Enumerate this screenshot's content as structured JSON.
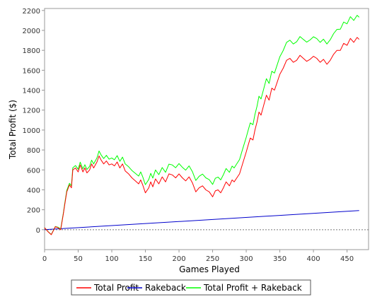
{
  "chart_data": {
    "type": "line",
    "title": "",
    "xlabel": "Games Played",
    "ylabel": "Total Profit ($)",
    "xlim": [
      0,
      482
    ],
    "ylim": [
      -200,
      2220
    ],
    "x_ticks": [
      0,
      50,
      100,
      150,
      200,
      250,
      300,
      350,
      400,
      450
    ],
    "y_ticks": [
      0,
      200,
      400,
      600,
      800,
      1000,
      1200,
      1400,
      1600,
      1800,
      2000,
      2200
    ],
    "zero_line": "dashed",
    "grid": false,
    "legend_position": "bottom",
    "series": [
      {
        "name": "Total Profit",
        "color": "#ff0000",
        "points": [
          [
            0,
            20
          ],
          [
            5,
            -20
          ],
          [
            10,
            -50
          ],
          [
            13,
            -10
          ],
          [
            16,
            30
          ],
          [
            20,
            20
          ],
          [
            24,
            0
          ],
          [
            28,
            160
          ],
          [
            30,
            250
          ],
          [
            33,
            380
          ],
          [
            37,
            450
          ],
          [
            40,
            420
          ],
          [
            42,
            600
          ],
          [
            46,
            620
          ],
          [
            50,
            580
          ],
          [
            53,
            650
          ],
          [
            57,
            580
          ],
          [
            60,
            620
          ],
          [
            63,
            570
          ],
          [
            67,
            600
          ],
          [
            70,
            660
          ],
          [
            73,
            620
          ],
          [
            78,
            680
          ],
          [
            81,
            740
          ],
          [
            84,
            700
          ],
          [
            88,
            660
          ],
          [
            92,
            690
          ],
          [
            96,
            650
          ],
          [
            100,
            660
          ],
          [
            104,
            640
          ],
          [
            108,
            680
          ],
          [
            112,
            620
          ],
          [
            116,
            660
          ],
          [
            120,
            590
          ],
          [
            125,
            560
          ],
          [
            130,
            520
          ],
          [
            135,
            490
          ],
          [
            140,
            460
          ],
          [
            143,
            500
          ],
          [
            146,
            450
          ],
          [
            150,
            370
          ],
          [
            155,
            420
          ],
          [
            158,
            480
          ],
          [
            161,
            430
          ],
          [
            165,
            510
          ],
          [
            170,
            460
          ],
          [
            175,
            530
          ],
          [
            180,
            480
          ],
          [
            185,
            560
          ],
          [
            190,
            550
          ],
          [
            195,
            520
          ],
          [
            200,
            560
          ],
          [
            205,
            520
          ],
          [
            210,
            490
          ],
          [
            215,
            530
          ],
          [
            220,
            470
          ],
          [
            225,
            380
          ],
          [
            230,
            420
          ],
          [
            235,
            440
          ],
          [
            240,
            400
          ],
          [
            245,
            380
          ],
          [
            250,
            330
          ],
          [
            254,
            390
          ],
          [
            258,
            400
          ],
          [
            262,
            370
          ],
          [
            266,
            420
          ],
          [
            270,
            480
          ],
          [
            275,
            440
          ],
          [
            279,
            500
          ],
          [
            282,
            480
          ],
          [
            286,
            520
          ],
          [
            290,
            560
          ],
          [
            295,
            670
          ],
          [
            300,
            780
          ],
          [
            303,
            850
          ],
          [
            306,
            920
          ],
          [
            310,
            900
          ],
          [
            313,
            1000
          ],
          [
            316,
            1080
          ],
          [
            319,
            1180
          ],
          [
            322,
            1150
          ],
          [
            326,
            1250
          ],
          [
            330,
            1350
          ],
          [
            334,
            1300
          ],
          [
            338,
            1420
          ],
          [
            342,
            1400
          ],
          [
            346,
            1480
          ],
          [
            350,
            1560
          ],
          [
            355,
            1620
          ],
          [
            360,
            1700
          ],
          [
            365,
            1720
          ],
          [
            370,
            1680
          ],
          [
            375,
            1700
          ],
          [
            380,
            1750
          ],
          [
            385,
            1720
          ],
          [
            390,
            1690
          ],
          [
            395,
            1710
          ],
          [
            400,
            1740
          ],
          [
            405,
            1720
          ],
          [
            410,
            1680
          ],
          [
            415,
            1710
          ],
          [
            420,
            1660
          ],
          [
            425,
            1700
          ],
          [
            430,
            1760
          ],
          [
            435,
            1800
          ],
          [
            440,
            1800
          ],
          [
            445,
            1870
          ],
          [
            450,
            1850
          ],
          [
            455,
            1920
          ],
          [
            460,
            1880
          ],
          [
            465,
            1930
          ],
          [
            468,
            1910
          ]
        ]
      },
      {
        "name": "Rakeback",
        "color": "#0000cc",
        "points": [
          [
            0,
            0
          ],
          [
            468,
            192
          ]
        ]
      },
      {
        "name": "Total Profit + Rakeback",
        "color": "#00ff00",
        "points": [
          [
            0,
            20
          ],
          [
            5,
            -18
          ],
          [
            10,
            -48
          ],
          [
            13,
            -8
          ],
          [
            16,
            32
          ],
          [
            20,
            24
          ],
          [
            24,
            8
          ],
          [
            28,
            170
          ],
          [
            30,
            262
          ],
          [
            33,
            394
          ],
          [
            37,
            466
          ],
          [
            40,
            440
          ],
          [
            42,
            622
          ],
          [
            46,
            644
          ],
          [
            50,
            606
          ],
          [
            53,
            678
          ],
          [
            57,
            610
          ],
          [
            60,
            652
          ],
          [
            63,
            604
          ],
          [
            67,
            636
          ],
          [
            70,
            698
          ],
          [
            73,
            660
          ],
          [
            78,
            722
          ],
          [
            81,
            790
          ],
          [
            84,
            752
          ],
          [
            88,
            714
          ],
          [
            92,
            746
          ],
          [
            96,
            708
          ],
          [
            100,
            720
          ],
          [
            104,
            702
          ],
          [
            108,
            744
          ],
          [
            112,
            686
          ],
          [
            116,
            728
          ],
          [
            120,
            660
          ],
          [
            125,
            632
          ],
          [
            130,
            594
          ],
          [
            135,
            566
          ],
          [
            140,
            538
          ],
          [
            143,
            580
          ],
          [
            146,
            532
          ],
          [
            150,
            452
          ],
          [
            155,
            504
          ],
          [
            158,
            566
          ],
          [
            161,
            518
          ],
          [
            165,
            600
          ],
          [
            170,
            552
          ],
          [
            175,
            624
          ],
          [
            180,
            576
          ],
          [
            185,
            658
          ],
          [
            190,
            650
          ],
          [
            195,
            622
          ],
          [
            200,
            664
          ],
          [
            205,
            626
          ],
          [
            210,
            598
          ],
          [
            215,
            640
          ],
          [
            220,
            582
          ],
          [
            225,
            494
          ],
          [
            230,
            536
          ],
          [
            235,
            558
          ],
          [
            240,
            520
          ],
          [
            245,
            502
          ],
          [
            250,
            454
          ],
          [
            254,
            516
          ],
          [
            258,
            528
          ],
          [
            262,
            500
          ],
          [
            266,
            552
          ],
          [
            270,
            614
          ],
          [
            275,
            576
          ],
          [
            279,
            638
          ],
          [
            282,
            620
          ],
          [
            286,
            662
          ],
          [
            290,
            704
          ],
          [
            295,
            816
          ],
          [
            300,
            928
          ],
          [
            303,
            1000
          ],
          [
            306,
            1072
          ],
          [
            310,
            1054
          ],
          [
            313,
            1156
          ],
          [
            316,
            1238
          ],
          [
            319,
            1340
          ],
          [
            322,
            1312
          ],
          [
            326,
            1414
          ],
          [
            330,
            1516
          ],
          [
            334,
            1468
          ],
          [
            338,
            1590
          ],
          [
            342,
            1572
          ],
          [
            346,
            1654
          ],
          [
            350,
            1736
          ],
          [
            355,
            1798
          ],
          [
            360,
            1880
          ],
          [
            365,
            1902
          ],
          [
            370,
            1864
          ],
          [
            375,
            1886
          ],
          [
            380,
            1938
          ],
          [
            385,
            1910
          ],
          [
            390,
            1882
          ],
          [
            395,
            1904
          ],
          [
            400,
            1936
          ],
          [
            405,
            1918
          ],
          [
            410,
            1880
          ],
          [
            415,
            1912
          ],
          [
            420,
            1864
          ],
          [
            425,
            1906
          ],
          [
            430,
            1968
          ],
          [
            435,
            2010
          ],
          [
            440,
            2012
          ],
          [
            445,
            2084
          ],
          [
            450,
            2066
          ],
          [
            455,
            2138
          ],
          [
            460,
            2100
          ],
          [
            465,
            2152
          ],
          [
            468,
            2132
          ]
        ]
      }
    ]
  }
}
